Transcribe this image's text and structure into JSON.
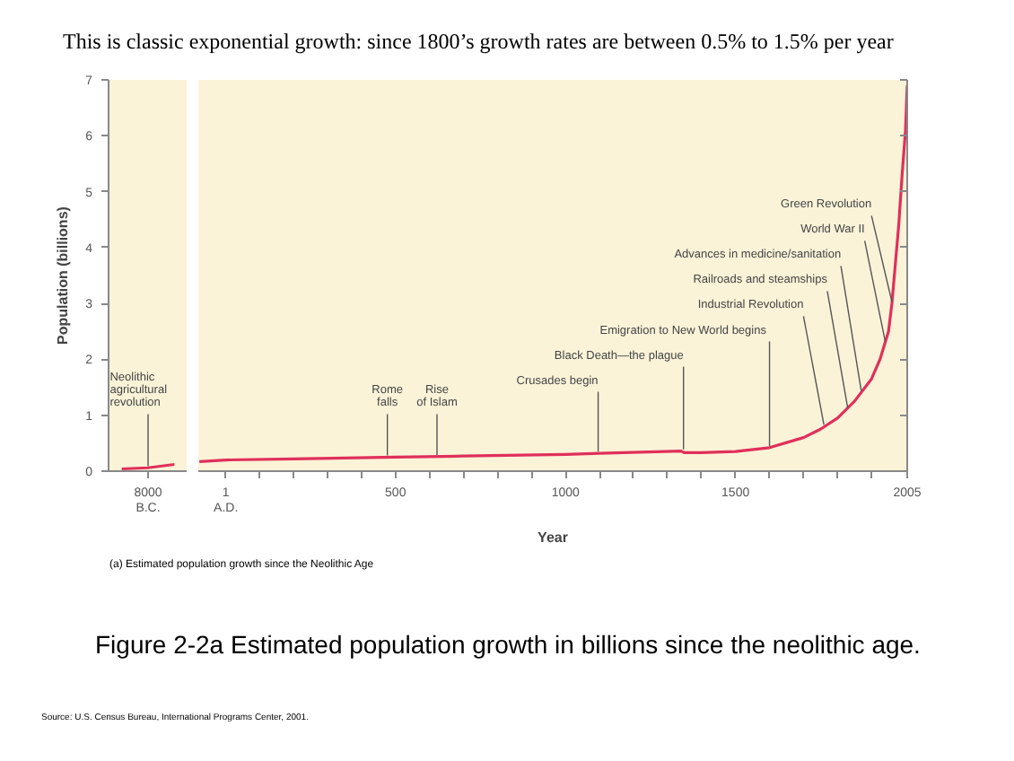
{
  "chart_data": [
    {
      "type": "line",
      "title": "This is classic exponential growth:  since 1800’s growth rates are between 0.5% to 1.5% per year",
      "ylabel": "Population (billions)",
      "categories": [
        null,
        "8000 B.C.",
        null
      ],
      "series": [
        {
          "color": "#e0305a",
          "values": [
            0.04,
            0.06,
            0.12
          ]
        }
      ],
      "ylim": [
        0,
        7
      ],
      "yticks": [
        0,
        1,
        2,
        3,
        4,
        5,
        6,
        7
      ],
      "grid": false,
      "marker": "none",
      "line_style": "solid",
      "annotations": [
        {
          "text": "Neolithic agricultural revolution",
          "x": "8000 B.C.",
          "y": 0.06
        }
      ]
    },
    {
      "type": "line",
      "xlabel": "Year",
      "x": [
        -77,
        1,
        200,
        500,
        700,
        1000,
        1100,
        1340,
        1350,
        1400,
        1500,
        1600,
        1700,
        1750,
        1800,
        1850,
        1900,
        1925,
        1950,
        1960,
        1970,
        1980,
        1990,
        2000,
        2005
      ],
      "series": [
        {
          "color": "#e0305a",
          "values": [
            0.17,
            0.2,
            0.22,
            0.25,
            0.27,
            0.3,
            0.32,
            0.36,
            0.33,
            0.33,
            0.35,
            0.42,
            0.6,
            0.75,
            0.95,
            1.25,
            1.65,
            2.0,
            2.5,
            3.0,
            3.7,
            4.4,
            5.3,
            6.1,
            6.9
          ]
        }
      ],
      "xlim": [
        -80,
        2005
      ],
      "xticks": [
        {
          "value": 1,
          "label": "1 A.D."
        },
        {
          "value": 100,
          "label": null
        },
        {
          "value": 200,
          "label": null
        },
        {
          "value": 300,
          "label": null
        },
        {
          "value": 400,
          "label": null
        },
        500,
        {
          "value": 600,
          "label": null
        },
        {
          "value": 700,
          "label": null
        },
        {
          "value": 800,
          "label": null
        },
        {
          "value": 900,
          "label": null
        },
        1000,
        {
          "value": 1100,
          "label": null
        },
        {
          "value": 1200,
          "label": null
        },
        {
          "value": 1300,
          "label": null
        },
        {
          "value": 1400,
          "label": null
        },
        1500,
        {
          "value": 1600,
          "label": null
        },
        {
          "value": 1700,
          "label": null
        },
        {
          "value": 1800,
          "label": null
        },
        {
          "value": 1900,
          "label": null
        },
        2005
      ],
      "ylim": [
        0,
        7
      ],
      "yticks": [
        0,
        1,
        2,
        3,
        4,
        5,
        6,
        7
      ],
      "tick_labels": "x",
      "grid": false,
      "marker": "none",
      "line_style": "solid",
      "annotations": [
        {
          "text": "Rome falls",
          "x": 476,
          "y": 0.25
        },
        {
          "text": "Rise of Islam",
          "x": 622,
          "y": 0.26
        },
        {
          "text": "Crusades begin",
          "x": 1096,
          "y": 0.32
        },
        {
          "text": "Black Death—the plague",
          "x": 1347,
          "y": 0.36
        },
        {
          "text": "Emigration to New World  begins",
          "x": 1600,
          "y": 0.42
        },
        {
          "text": "Industrial Revolution",
          "x": 1760,
          "y": 0.8
        },
        {
          "text": "Railroads and steamships",
          "x": 1830,
          "y": 1.1
        },
        {
          "text": "Advances in medicine/sanitation",
          "x": 1870,
          "y": 1.4
        },
        {
          "text": "World War II",
          "x": 1940,
          "y": 2.3
        },
        {
          "text": "Green Revolution",
          "x": 1960,
          "y": 3.0
        },
        "(a)    Estimated population growth since the Neolithic Age",
        "Figure 2-2a Estimated population growth in billions since the neolithic age.",
        "Source: U.S. Census Bureau, International Programs Center, 2001."
      ]
    }
  ]
}
